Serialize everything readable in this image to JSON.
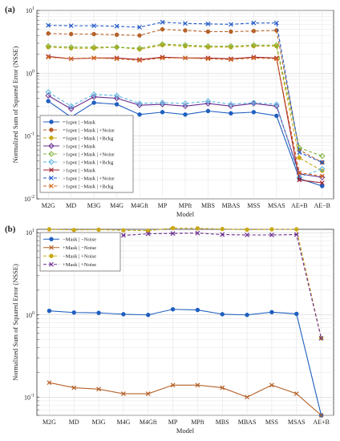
{
  "figure": {
    "panels": [
      {
        "label": "(a)"
      },
      {
        "label": "(b)"
      }
    ]
  },
  "chart_data": [
    {
      "type": "line",
      "panel_label": "(a)",
      "title": "",
      "xlabel": "Model",
      "ylabel": "Normalized Sum of Squared Error (NSSE)",
      "yscale": "log",
      "ylim": [
        0.01,
        10
      ],
      "y_tick_labels": [
        "10^-2",
        "10^-1",
        "10^0",
        "10^1"
      ],
      "grid": true,
      "legend_position": "bottom-left",
      "categories": [
        "M2G",
        "MD",
        "M3G",
        "M4G",
        "M4Gft",
        "MP",
        "MPft",
        "MBS",
        "MBAS",
        "MSS",
        "MSAS",
        "AE+B",
        "AE−B"
      ],
      "series": [
        {
          "name": "=1spot | −Mask",
          "color": "#1f5fbf",
          "linestyle": "solid",
          "marker": "circle",
          "values": [
            0.36,
            0.2,
            0.34,
            0.32,
            0.22,
            0.24,
            0.22,
            0.25,
            0.23,
            0.24,
            0.21,
            0.021,
            0.016
          ]
        },
        {
          "name": "=1spot | −Mask | +Noise",
          "color": "#b5622a",
          "linestyle": "dashed",
          "marker": "circle",
          "values": [
            4.3,
            4.2,
            4.2,
            4.1,
            4.0,
            5.0,
            4.8,
            4.6,
            4.6,
            4.7,
            4.8,
            0.06,
            0.038
          ]
        },
        {
          "name": "=1spot | −Mask | +Bckg",
          "color": "#c9a817",
          "linestyle": "dashed",
          "marker": "circle",
          "values": [
            2.6,
            2.5,
            2.5,
            2.6,
            2.4,
            2.8,
            2.7,
            2.6,
            2.6,
            2.7,
            2.7,
            0.045,
            0.028
          ]
        },
        {
          "name": ">1spot | +Mask",
          "color": "#6b2e92",
          "linestyle": "solid",
          "marker": "diamond",
          "values": [
            0.44,
            0.27,
            0.42,
            0.4,
            0.31,
            0.32,
            0.3,
            0.33,
            0.3,
            0.33,
            0.3,
            0.025,
            0.022
          ]
        },
        {
          "name": ">1spot | +Mask | +Noise",
          "color": "#7fb23a",
          "linestyle": "dashed",
          "marker": "diamond",
          "values": [
            2.7,
            2.6,
            2.6,
            2.6,
            2.5,
            2.9,
            2.8,
            2.7,
            2.7,
            2.8,
            2.8,
            0.065,
            0.048
          ]
        },
        {
          "name": ">1spot | +Mask | +Bckg",
          "color": "#5bb5e0",
          "linestyle": "dashed",
          "marker": "diamond",
          "values": [
            0.5,
            0.3,
            0.46,
            0.44,
            0.33,
            0.34,
            0.33,
            0.36,
            0.32,
            0.34,
            0.32,
            0.022,
            0.03
          ]
        },
        {
          "name": ">1spot | −Mask",
          "color": "#a01c2c",
          "linestyle": "solid",
          "marker": "x",
          "values": [
            1.85,
            1.7,
            1.75,
            1.75,
            1.65,
            1.8,
            1.75,
            1.75,
            1.7,
            1.8,
            1.75,
            0.02,
            0.018
          ]
        },
        {
          "name": ">1spot | −Mask | +Noise",
          "color": "#2258c8",
          "linestyle": "dashed",
          "marker": "x",
          "values": [
            5.8,
            5.7,
            5.7,
            5.6,
            5.4,
            6.5,
            6.2,
            6.1,
            6.0,
            6.3,
            6.3,
            0.055,
            0.038
          ]
        },
        {
          "name": ">1spot | −Mask | +Bckg",
          "color": "#d2691e",
          "linestyle": "dashed",
          "marker": "x",
          "values": [
            1.8,
            1.7,
            1.75,
            1.7,
            1.6,
            1.75,
            1.75,
            1.7,
            1.65,
            1.75,
            1.7,
            0.026,
            0.023
          ]
        }
      ]
    },
    {
      "type": "line",
      "panel_label": "(b)",
      "title": "",
      "xlabel": "Model",
      "ylabel": "Normalized Sum of Squared Error (NSSE)",
      "yscale": "log",
      "ylim": [
        0.06,
        11
      ],
      "y_tick_labels": [
        "10^-1",
        "10^0",
        "10^1"
      ],
      "grid": true,
      "legend_position": "top-left",
      "categories": [
        "M2G",
        "MD",
        "M3G",
        "M4G",
        "M4Gft",
        "MP",
        "MPft",
        "MBS",
        "MBAS",
        "MSS",
        "MSAS",
        "AE+B"
      ],
      "series": [
        {
          "name": "−Mask | −Noise",
          "color": "#1f5fbf",
          "linestyle": "solid",
          "marker": "circle",
          "values": [
            1.12,
            1.07,
            1.06,
            1.02,
            1.0,
            1.17,
            1.15,
            1.02,
            1.0,
            1.08,
            1.03,
            0.06
          ]
        },
        {
          "name": "+Mask | −Noise",
          "color": "#b5622a",
          "linestyle": "solid",
          "marker": "x",
          "values": [
            0.15,
            0.13,
            0.125,
            0.11,
            0.11,
            0.14,
            0.14,
            0.13,
            0.1,
            0.14,
            0.11,
            0.06
          ]
        },
        {
          "name": "−Mask | +Noise",
          "color": "#c9a817",
          "linestyle": "dashed",
          "marker": "circle",
          "values": [
            11.0,
            10.8,
            10.9,
            10.7,
            10.6,
            11.4,
            11.3,
            11.1,
            10.9,
            11.0,
            11.0,
            0.52
          ]
        },
        {
          "name": "+Mask | +Noise",
          "color": "#6b2e92",
          "linestyle": "dashed",
          "marker": "x",
          "values": [
            9.5,
            9.4,
            9.4,
            9.3,
            9.7,
            9.8,
            9.9,
            9.5,
            9.4,
            9.4,
            9.5,
            0.52
          ]
        }
      ]
    }
  ]
}
